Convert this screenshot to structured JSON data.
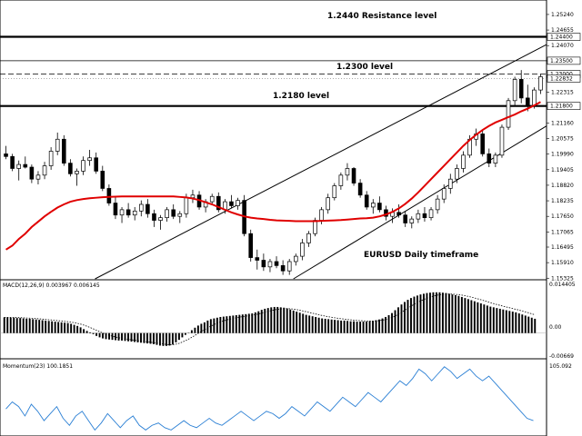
{
  "chart_data": [
    {
      "type": "candlestick",
      "title": "",
      "annotations": [
        "1.2440 Resistance level",
        "1.2300  level",
        "1.2180 level",
        "EURUSD Daily timeframe"
      ],
      "ylim": [
        1.153,
        1.2575
      ],
      "grid": false,
      "y_ticks": [
        "1.25240",
        "1.24655",
        "1.24070",
        "1.23500",
        "1.22315",
        "1.21160",
        "1.20575",
        "1.19990",
        "1.19405",
        "1.18820",
        "1.18235",
        "1.17650",
        "1.17065",
        "1.16495",
        "1.15910",
        "1.15325"
      ],
      "level_badges": [
        {
          "label": "1.24400",
          "value": 1.244
        },
        {
          "label": "1.23500",
          "value": 1.235
        },
        {
          "label": "1.23000",
          "value": 1.23
        },
        {
          "label": "1.22832",
          "value": 1.22832
        },
        {
          "label": "1.21800",
          "value": 1.218
        }
      ],
      "horizontal_lines": [
        {
          "value": 1.244,
          "style": "solid-thick"
        },
        {
          "value": 1.235,
          "style": "solid-thin"
        },
        {
          "value": 1.23,
          "style": "dashed"
        },
        {
          "value": 1.22832,
          "style": "dotted"
        },
        {
          "value": 1.218,
          "style": "solid-thick"
        }
      ],
      "trend_channel": {
        "upper": [
          {
            "bar": 21,
            "value": 1.162
          },
          {
            "bar": 97,
            "value": 1.2575
          }
        ],
        "lower": [
          {
            "bar": 46,
            "value": 1.155
          },
          {
            "bar": 100,
            "value": 1.234
          }
        ]
      },
      "moving_average": {
        "color": "#e00000",
        "values": [
          1.164,
          1.1655,
          1.168,
          1.17,
          1.1725,
          1.1745,
          1.1765,
          1.1782,
          1.1798,
          1.181,
          1.182,
          1.1826,
          1.183,
          1.1833,
          1.1835,
          1.1837,
          1.1838,
          1.1839,
          1.184,
          1.184,
          1.184,
          1.184,
          1.184,
          1.184,
          1.184,
          1.184,
          1.184,
          1.1838,
          1.1836,
          1.1832,
          1.1826,
          1.1818,
          1.181,
          1.18,
          1.179,
          1.178,
          1.1772,
          1.1765,
          1.176,
          1.1757,
          1.1755,
          1.1752,
          1.175,
          1.1749,
          1.1748,
          1.1747,
          1.1747,
          1.1747,
          1.1747,
          1.1748,
          1.1749,
          1.175,
          1.1751,
          1.1753,
          1.1755,
          1.1757,
          1.1758,
          1.176,
          1.1765,
          1.1772,
          1.1782,
          1.1795,
          1.1812,
          1.1832,
          1.1855,
          1.188,
          1.1905,
          1.193,
          1.1955,
          1.198,
          1.2005,
          1.203,
          1.2052,
          1.2072,
          1.209,
          1.2105,
          1.2118,
          1.2128,
          1.2138,
          1.2148,
          1.216,
          1.217,
          1.2182,
          1.2195
        ]
      },
      "candles": [
        [
          1.2,
          1.203,
          1.198,
          1.199
        ],
        [
          1.199,
          1.2,
          1.1935,
          1.1945
        ],
        [
          1.1945,
          1.1975,
          1.19,
          1.196
        ],
        [
          1.196,
          1.199,
          1.1945,
          1.195
        ],
        [
          1.195,
          1.196,
          1.189,
          1.1905
        ],
        [
          1.1905,
          1.1935,
          1.1885,
          1.192
        ],
        [
          1.192,
          1.197,
          1.1905,
          1.1955
        ],
        [
          1.1955,
          1.2025,
          1.194,
          1.201
        ],
        [
          1.201,
          1.208,
          1.1995,
          1.2055
        ],
        [
          1.2055,
          1.207,
          1.1955,
          1.1965
        ],
        [
          1.1965,
          1.198,
          1.1915,
          1.1925
        ],
        [
          1.1925,
          1.1945,
          1.188,
          1.1935
        ],
        [
          1.1935,
          1.199,
          1.192,
          1.1975
        ],
        [
          1.1975,
          1.2015,
          1.1955,
          1.1985
        ],
        [
          1.1985,
          1.2005,
          1.1925,
          1.1935
        ],
        [
          1.1935,
          1.1955,
          1.186,
          1.187
        ],
        [
          1.187,
          1.1885,
          1.1805,
          1.1815
        ],
        [
          1.1815,
          1.184,
          1.1755,
          1.177
        ],
        [
          1.177,
          1.18,
          1.174,
          1.179
        ],
        [
          1.179,
          1.1815,
          1.176,
          1.177
        ],
        [
          1.177,
          1.18,
          1.175,
          1.1785
        ],
        [
          1.1785,
          1.1825,
          1.1765,
          1.181
        ],
        [
          1.181,
          1.183,
          1.176,
          1.1775
        ],
        [
          1.1775,
          1.179,
          1.1725,
          1.175
        ],
        [
          1.175,
          1.177,
          1.1715,
          1.176
        ],
        [
          1.176,
          1.18,
          1.1745,
          1.179
        ],
        [
          1.179,
          1.181,
          1.1755,
          1.1765
        ],
        [
          1.1765,
          1.1785,
          1.174,
          1.1775
        ],
        [
          1.1775,
          1.185,
          1.176,
          1.1835
        ],
        [
          1.1835,
          1.1865,
          1.1815,
          1.1845
        ],
        [
          1.1845,
          1.186,
          1.179,
          1.18
        ],
        [
          1.18,
          1.183,
          1.178,
          1.182
        ],
        [
          1.182,
          1.185,
          1.181,
          1.184
        ],
        [
          1.184,
          1.1855,
          1.178,
          1.179
        ],
        [
          1.179,
          1.183,
          1.1775,
          1.182
        ],
        [
          1.182,
          1.1845,
          1.1795,
          1.1805
        ],
        [
          1.1805,
          1.1835,
          1.179,
          1.1825
        ],
        [
          1.1825,
          1.1845,
          1.169,
          1.17
        ],
        [
          1.17,
          1.1715,
          1.1595,
          1.161
        ],
        [
          1.161,
          1.164,
          1.1565,
          1.16
        ],
        [
          1.16,
          1.1625,
          1.156,
          1.1575
        ],
        [
          1.1575,
          1.1605,
          1.1555,
          1.1595
        ],
        [
          1.1595,
          1.1615,
          1.157,
          1.158
        ],
        [
          1.158,
          1.16,
          1.1545,
          1.156
        ],
        [
          1.156,
          1.1605,
          1.1545,
          1.1595
        ],
        [
          1.1595,
          1.1625,
          1.158,
          1.1615
        ],
        [
          1.1615,
          1.168,
          1.16,
          1.1665
        ],
        [
          1.1665,
          1.171,
          1.165,
          1.17
        ],
        [
          1.17,
          1.176,
          1.169,
          1.175
        ],
        [
          1.175,
          1.18,
          1.1735,
          1.179
        ],
        [
          1.179,
          1.185,
          1.1775,
          1.1835
        ],
        [
          1.1835,
          1.189,
          1.1825,
          1.188
        ],
        [
          1.188,
          1.193,
          1.1865,
          1.192
        ],
        [
          1.192,
          1.1965,
          1.19,
          1.1945
        ],
        [
          1.1945,
          1.195,
          1.188,
          1.189
        ],
        [
          1.189,
          1.1905,
          1.1835,
          1.1845
        ],
        [
          1.1845,
          1.186,
          1.179,
          1.18
        ],
        [
          1.18,
          1.183,
          1.1775,
          1.1815
        ],
        [
          1.1815,
          1.184,
          1.178,
          1.179
        ],
        [
          1.179,
          1.1805,
          1.175,
          1.1765
        ],
        [
          1.1765,
          1.1795,
          1.174,
          1.178
        ],
        [
          1.178,
          1.181,
          1.176,
          1.177
        ],
        [
          1.177,
          1.1785,
          1.1725,
          1.174
        ],
        [
          1.174,
          1.1765,
          1.172,
          1.1755
        ],
        [
          1.1755,
          1.179,
          1.174,
          1.1775
        ],
        [
          1.1775,
          1.18,
          1.1745,
          1.176
        ],
        [
          1.176,
          1.18,
          1.175,
          1.179
        ],
        [
          1.179,
          1.1845,
          1.1775,
          1.183
        ],
        [
          1.183,
          1.1885,
          1.1815,
          1.187
        ],
        [
          1.187,
          1.1925,
          1.185,
          1.1905
        ],
        [
          1.1905,
          1.196,
          1.189,
          1.1945
        ],
        [
          1.1945,
          1.201,
          1.193,
          1.1995
        ],
        [
          1.1995,
          1.207,
          1.1985,
          1.2055
        ],
        [
          1.2055,
          1.2095,
          1.203,
          1.2075
        ],
        [
          1.2075,
          1.209,
          1.199,
          1.2
        ],
        [
          1.2,
          1.202,
          1.195,
          1.1965
        ],
        [
          1.1965,
          1.2005,
          1.195,
          1.1995
        ],
        [
          1.1995,
          1.211,
          1.1985,
          1.21
        ],
        [
          1.21,
          1.221,
          1.209,
          1.22
        ],
        [
          1.22,
          1.229,
          1.218,
          1.228
        ],
        [
          1.228,
          1.2315,
          1.219,
          1.221
        ],
        [
          1.221,
          1.226,
          1.216,
          1.218
        ],
        [
          1.218,
          1.225,
          1.217,
          1.224
        ],
        [
          1.224,
          1.23,
          1.2225,
          1.229
        ]
      ]
    },
    {
      "type": "bar",
      "title": "MACD(12,26,9) 0.003967 0.006145",
      "y_ticks": [
        "0.014405",
        "0.00",
        "-0.00669"
      ],
      "ylim": [
        -0.00669,
        0.014405
      ],
      "signal_line": "dotted",
      "values": [
        0.0044,
        0.0044,
        0.0043,
        0.0043,
        0.0042,
        0.0042,
        0.0041,
        0.004,
        0.004,
        0.0039,
        0.0038,
        0.0037,
        0.0036,
        0.0035,
        0.0034,
        0.0033,
        0.0032,
        0.0031,
        0.003,
        0.0029,
        0.0028,
        0.0026,
        0.0023,
        0.002,
        0.0016,
        0.0011,
        0.0006,
        0.0002,
        -0.0003,
        -0.0008,
        -0.0012,
        -0.0015,
        -0.0017,
        -0.0018,
        -0.0019,
        -0.002,
        -0.0021,
        -0.0021,
        -0.0022,
        -0.0023,
        -0.0024,
        -0.0025,
        -0.0026,
        -0.0027,
        -0.0028,
        -0.0029,
        -0.003,
        -0.0031,
        -0.0033,
        -0.0035,
        -0.0036,
        -0.0036,
        -0.0035,
        -0.0032,
        -0.0026,
        -0.0019,
        -0.0012,
        -0.0005,
        0.0001,
        0.0008,
        0.0015,
        0.0021,
        0.0026,
        0.003,
        0.0035,
        0.0039,
        0.0041,
        0.0043,
        0.0045,
        0.0046,
        0.0047,
        0.0048,
        0.0049,
        0.005,
        0.0051,
        0.0052,
        0.0053,
        0.0054,
        0.0055,
        0.0058,
        0.0061,
        0.0065,
        0.0068,
        0.007,
        0.0072,
        0.0073,
        0.0073,
        0.0072,
        0.0071,
        0.0069,
        0.0066,
        0.0063,
        0.006,
        0.0057,
        0.0054,
        0.0051,
        0.0049,
        0.0047,
        0.0045,
        0.0043,
        0.0041,
        0.004,
        0.0039,
        0.0038,
        0.0037,
        0.0036,
        0.0035,
        0.0035,
        0.0034,
        0.0033,
        0.0033,
        0.0032,
        0.0032,
        0.0032,
        0.0032,
        0.0033,
        0.0034,
        0.0036,
        0.0038,
        0.0041,
        0.0045,
        0.005,
        0.0056,
        0.0064,
        0.0072,
        0.008,
        0.0087,
        0.0093,
        0.0098,
        0.0102,
        0.0105,
        0.0108,
        0.011,
        0.0112,
        0.0113,
        0.0114,
        0.0114,
        0.0114,
        0.0113,
        0.0112,
        0.011,
        0.0108,
        0.0106,
        0.0104,
        0.0101,
        0.0098,
        0.0095,
        0.0092,
        0.0089,
        0.0086,
        0.0083,
        0.008,
        0.0077,
        0.0074,
        0.0072,
        0.007,
        0.0068,
        0.0066,
        0.0064,
        0.0062,
        0.006,
        0.0058,
        0.0055,
        0.0052,
        0.0049,
        0.0046,
        0.0043,
        0.004
      ]
    },
    {
      "type": "line",
      "title": "Momentum(23) 100.1851",
      "y_ticks": [
        "105.092"
      ],
      "color": "#2a7fd4",
      "values": [
        101.2,
        101.8,
        101.4,
        100.6,
        101.6,
        101.0,
        100.2,
        100.8,
        101.4,
        100.4,
        99.8,
        100.6,
        101.0,
        100.2,
        99.4,
        100.0,
        100.8,
        100.2,
        99.6,
        100.2,
        100.6,
        99.8,
        99.4,
        99.8,
        100.0,
        99.6,
        99.4,
        99.8,
        100.2,
        99.8,
        99.6,
        100.0,
        100.4,
        100.0,
        99.8,
        100.2,
        100.6,
        101.0,
        100.6,
        100.2,
        100.6,
        101.0,
        100.8,
        100.4,
        100.8,
        101.4,
        101.0,
        100.6,
        101.2,
        101.8,
        101.4,
        101.0,
        101.6,
        102.2,
        101.8,
        101.4,
        102.0,
        102.6,
        102.2,
        101.8,
        102.4,
        103.0,
        103.6,
        103.2,
        103.8,
        104.6,
        104.2,
        103.6,
        104.2,
        104.8,
        104.4,
        103.8,
        104.2,
        104.6,
        104.0,
        103.6,
        104.0,
        103.4,
        102.8,
        102.2,
        101.6,
        101.0,
        100.4,
        100.2
      ]
    }
  ]
}
